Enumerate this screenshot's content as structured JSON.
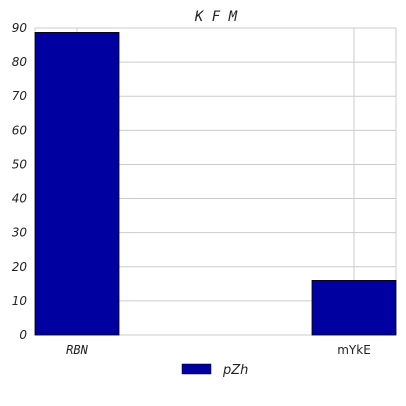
{
  "chart_data": {
    "type": "bar",
    "title": "K F M",
    "categories": [
      "RBN",
      "mYkE"
    ],
    "series": [
      {
        "name": "pZh",
        "values": [
          88.7,
          16
        ],
        "color": "#0000a0"
      }
    ],
    "ylim": [
      0,
      90
    ],
    "yticks": [
      0,
      10,
      20,
      30,
      40,
      50,
      60,
      70,
      80,
      90
    ],
    "grid": true,
    "legend": "bottom-center"
  }
}
